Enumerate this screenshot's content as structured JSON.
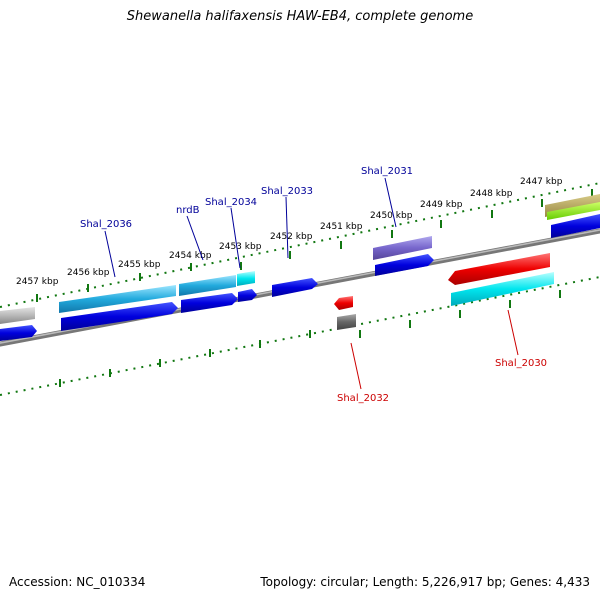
{
  "title": "Shewanella halifaxensis HAW-EB4, complete genome",
  "footer": {
    "accession": "Accession: NC_010334",
    "topology": "Topology: circular; Length: 5,226,917 bp; Genes: 4,433"
  },
  "ruler_labels": [
    "2447 kbp",
    "2448 kbp",
    "2449 kbp",
    "2450 kbp",
    "2451 kbp",
    "2452 kbp",
    "2453 kbp",
    "2454 kbp",
    "2455 kbp",
    "2456 kbp",
    "2457 kbp"
  ],
  "gene_labels": {
    "shal_2036": "Shal_2036",
    "nrdb": "nrdB",
    "shal_2034": "Shal_2034",
    "shal_2033": "Shal_2033",
    "shal_2031": "Shal_2031",
    "shal_2032": "Shal_2032",
    "shal_2030": "Shal_2030"
  },
  "colors": {
    "forward_label": "#000099",
    "reverse_label": "#cc0000",
    "cds": "#0000dd",
    "feature_cyan": "#22aadd",
    "feature_red": "#ee0000",
    "feature_purple": "#7766cc",
    "backbone": "#888888",
    "ticks": "#117711"
  }
}
